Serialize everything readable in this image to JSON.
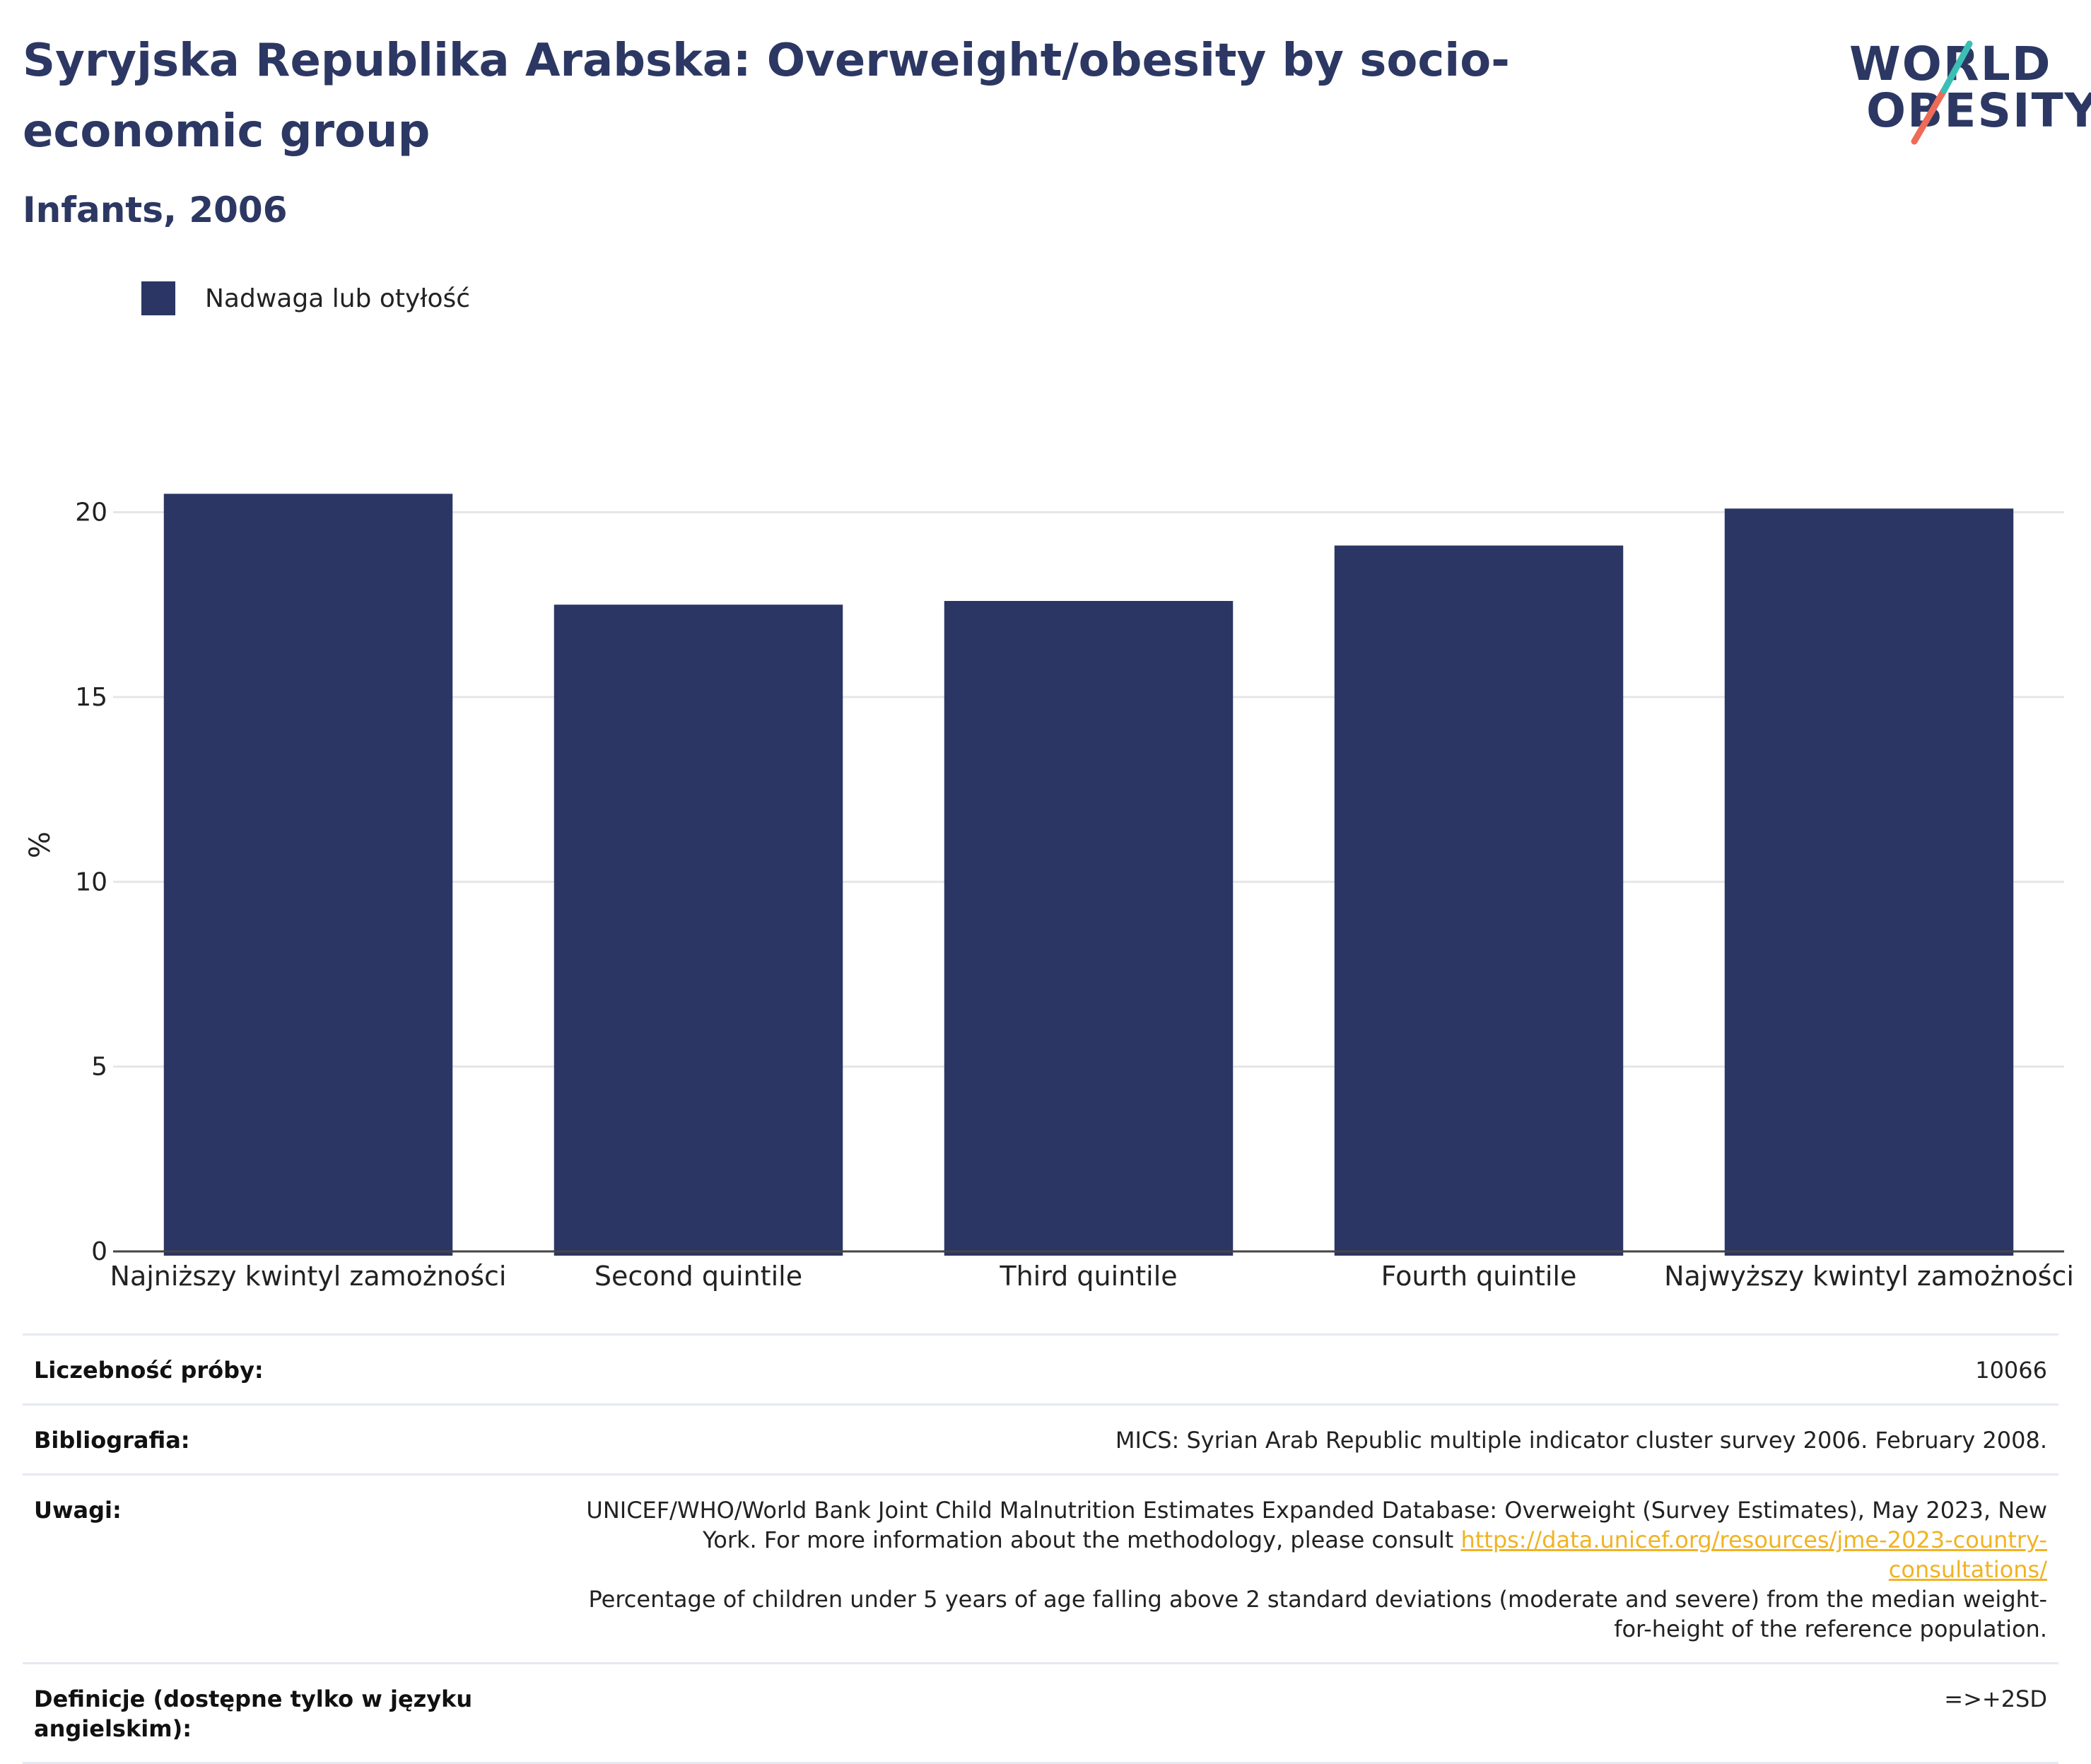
{
  "header": {
    "title": "Syryjska Republika Arabska: Overweight/obesity by socio-economic group",
    "subtitle": "Infants, 2006"
  },
  "logo": {
    "line1": "WORLD",
    "line2": "OBESITY",
    "colors": {
      "text": "#2c3863",
      "slash_top": "#3bbfb5",
      "slash_bottom": "#ee6b57"
    }
  },
  "legend": {
    "label": "Nadwaga lub otyłość",
    "color": "#2b3664"
  },
  "chart_data": {
    "type": "bar",
    "categories": [
      "Najniższy kwintyl zamożności",
      "Second quintile",
      "Third quintile",
      "Fourth quintile",
      "Najwyższy kwintyl zamożności"
    ],
    "series": [
      {
        "name": "Nadwaga lub otyłość",
        "values": [
          20.5,
          17.5,
          17.6,
          19.1,
          20.1
        ],
        "color": "#2b3664"
      }
    ],
    "ylabel": "%",
    "ylim": [
      0,
      22
    ],
    "yticks": [
      0,
      5,
      10,
      15,
      20
    ],
    "grid": true,
    "legend_position": "top-left"
  },
  "meta": {
    "sample_label": "Liczebność próby:",
    "sample_value": "10066",
    "biblio_label": "Bibliografia:",
    "biblio_value": "MICS: Syrian Arab Republic multiple indicator cluster survey 2006. February 2008.",
    "notes_label": "Uwagi:",
    "notes_text1": "UNICEF/WHO/World Bank Joint Child Malnutrition Estimates Expanded Database: Overweight (Survey Estimates), May 2023, New York. For more information about the methodology, please consult ",
    "notes_link": "https://data.unicef.org/resources/jme-2023-country-consultations/",
    "notes_text2": "Percentage of children under 5 years of age falling above 2 standard deviations (moderate and severe) from the median weight-for-height of the reference population.",
    "def_label": "Definicje (dostępne tylko w języku angielskim):",
    "def_value": "=>+2SD"
  }
}
